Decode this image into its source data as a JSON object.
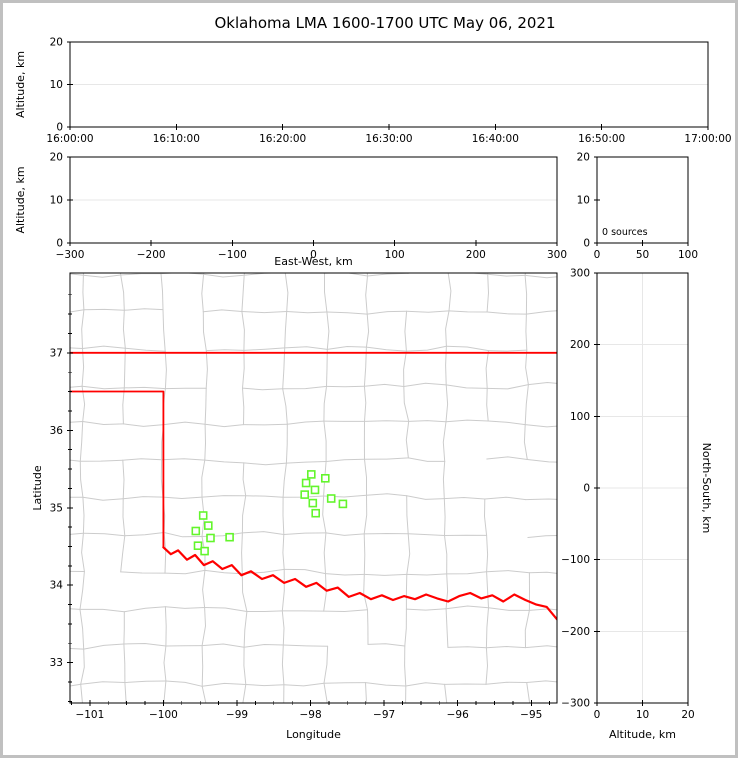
{
  "figure": {
    "title": "Oklahoma LMA 1600-1700 UTC May 06, 2021"
  },
  "colors": {
    "background": "#ffffff",
    "frame_border": "#c0c0c0",
    "axis": "#000000",
    "text": "#000000",
    "grid": "#e7e7e7",
    "county": "#cccccc",
    "state_border": "#ff0000",
    "river": "#ff0000",
    "station": "#63f52c",
    "station_fill": "#ffffff"
  },
  "chart_data": {
    "type": "scatter",
    "figure_style": "XLMA-style multi-panel lightning mapping array display; all VHF-source panels are empty (0 sources); plan-view map shows LMA station locations (green squares), Oklahoma state border / Red River (red) and county boundaries (gray).",
    "panels": {
      "time_height": {
        "ylabel": "Altitude, km",
        "y_range": [
          0,
          20
        ],
        "y_ticks": {
          "values": [
            0,
            10,
            20
          ],
          "labels": [
            "0",
            "10",
            "20"
          ]
        },
        "x_ticks": {
          "fractions": [
            0,
            0.16667,
            0.33333,
            0.5,
            0.66667,
            0.83333,
            1
          ],
          "labels": [
            "16:00:00",
            "16:10:00",
            "16:20:00",
            "16:30:00",
            "16:40:00",
            "16:50:00",
            "17:00:00"
          ]
        },
        "grid_y": [
          10
        ],
        "points": []
      },
      "ew_height": {
        "xlabel": "East-West, km",
        "x_range": [
          -300,
          300
        ],
        "x_ticks": {
          "values": [
            -300,
            -200,
            -100,
            0,
            100,
            200,
            300
          ],
          "labels": [
            "−300",
            "−200",
            "−100",
            "0",
            "100",
            "200",
            "300"
          ]
        },
        "ylabel": "Altitude, km",
        "y_range": [
          0,
          20
        ],
        "y_ticks": {
          "values": [
            0,
            10,
            20
          ],
          "labels": [
            "0",
            "10",
            "20"
          ]
        },
        "grid_y": [
          10
        ],
        "points": []
      },
      "source_histogram": {
        "x_range": [
          0,
          100
        ],
        "x_ticks": {
          "values": [
            0,
            50,
            100
          ],
          "labels": [
            "0",
            "50",
            "100"
          ]
        },
        "y_range": [
          0,
          20
        ],
        "y_ticks": {
          "values": [
            0,
            10,
            20
          ],
          "labels": [
            "0",
            "10",
            "20"
          ]
        },
        "annotation": "0 sources",
        "bars": []
      },
      "plan_map": {
        "xlabel": "Longitude",
        "ylabel": "Latitude",
        "lon_range": [
          -101.27,
          -94.65
        ],
        "lat_range": [
          32.48,
          38.03
        ],
        "x_ticks": {
          "values": [
            -101,
            -100,
            -99,
            -98,
            -97,
            -96,
            -95
          ],
          "labels": [
            "−101",
            "−100",
            "−99",
            "−98",
            "−97",
            "−96",
            "−95"
          ]
        },
        "y_ticks": {
          "values": [
            33,
            34,
            35,
            36,
            37
          ],
          "labels": [
            "33",
            "34",
            "35",
            "36",
            "37"
          ]
        },
        "minor_tick_step": 0.25,
        "state_borders": [
          {
            "name": "oklahoma-kansas-border",
            "points": [
              [
                -101.27,
                37.0
              ],
              [
                -94.65,
                37.0
              ]
            ]
          },
          {
            "name": "panhandle-texas-border",
            "points": [
              [
                -101.27,
                36.5
              ],
              [
                -100.0,
                36.5
              ],
              [
                -100.0,
                34.49
              ]
            ]
          }
        ],
        "red_river": {
          "name": "red-river-texas-border",
          "points": [
            [
              -100.0,
              34.49
            ],
            [
              -99.9,
              34.4
            ],
            [
              -99.8,
              34.45
            ],
            [
              -99.68,
              34.33
            ],
            [
              -99.57,
              34.39
            ],
            [
              -99.45,
              34.26
            ],
            [
              -99.33,
              34.31
            ],
            [
              -99.2,
              34.21
            ],
            [
              -99.07,
              34.26
            ],
            [
              -98.94,
              34.13
            ],
            [
              -98.81,
              34.18
            ],
            [
              -98.66,
              34.08
            ],
            [
              -98.51,
              34.13
            ],
            [
              -98.36,
              34.03
            ],
            [
              -98.21,
              34.08
            ],
            [
              -98.06,
              33.98
            ],
            [
              -97.92,
              34.03
            ],
            [
              -97.78,
              33.93
            ],
            [
              -97.63,
              33.97
            ],
            [
              -97.48,
              33.85
            ],
            [
              -97.33,
              33.9
            ],
            [
              -97.18,
              33.82
            ],
            [
              -97.03,
              33.87
            ],
            [
              -96.88,
              33.81
            ],
            [
              -96.73,
              33.86
            ],
            [
              -96.58,
              33.82
            ],
            [
              -96.43,
              33.88
            ],
            [
              -96.28,
              33.83
            ],
            [
              -96.13,
              33.79
            ],
            [
              -95.98,
              33.86
            ],
            [
              -95.83,
              33.9
            ],
            [
              -95.68,
              33.83
            ],
            [
              -95.53,
              33.87
            ],
            [
              -95.38,
              33.79
            ],
            [
              -95.23,
              33.88
            ],
            [
              -95.08,
              33.81
            ],
            [
              -94.93,
              33.75
            ],
            [
              -94.79,
              33.72
            ],
            [
              -94.65,
              33.56
            ]
          ]
        },
        "stations": [
          [
            -97.99,
            35.43
          ],
          [
            -97.8,
            35.38
          ],
          [
            -98.06,
            35.32
          ],
          [
            -97.94,
            35.23
          ],
          [
            -98.08,
            35.17
          ],
          [
            -97.72,
            35.12
          ],
          [
            -97.97,
            35.06
          ],
          [
            -97.56,
            35.05
          ],
          [
            -97.93,
            34.93
          ],
          [
            -99.46,
            34.9
          ],
          [
            -99.39,
            34.77
          ],
          [
            -99.56,
            34.7
          ],
          [
            -99.36,
            34.61
          ],
          [
            -99.1,
            34.62
          ],
          [
            -99.53,
            34.51
          ],
          [
            -99.44,
            34.44
          ]
        ],
        "county_grid": {
          "seed": 3,
          "lon_start": -101.65,
          "lon_step": 0.55,
          "cols": 15,
          "lat_start": 32.25,
          "lat_step": 0.48,
          "rows": 14,
          "jitter": 0.07,
          "skip": 0.1
        }
      },
      "ns_height": {
        "xlabel": "Altitude, km",
        "x_range": [
          0,
          20
        ],
        "x_ticks": {
          "values": [
            0,
            10,
            20
          ],
          "labels": [
            "0",
            "10",
            "20"
          ]
        },
        "ylabel": "North-South, km",
        "y_range": [
          -300,
          300
        ],
        "y_ticks": {
          "values": [
            -300,
            -200,
            -100,
            0,
            100,
            200,
            300
          ],
          "labels": [
            "−300",
            "−200",
            "−100",
            "0",
            "100",
            "200",
            "300"
          ]
        },
        "grid_x": [
          10
        ],
        "grid_y": [
          -200,
          -100,
          0,
          100,
          200
        ],
        "points": []
      }
    }
  }
}
